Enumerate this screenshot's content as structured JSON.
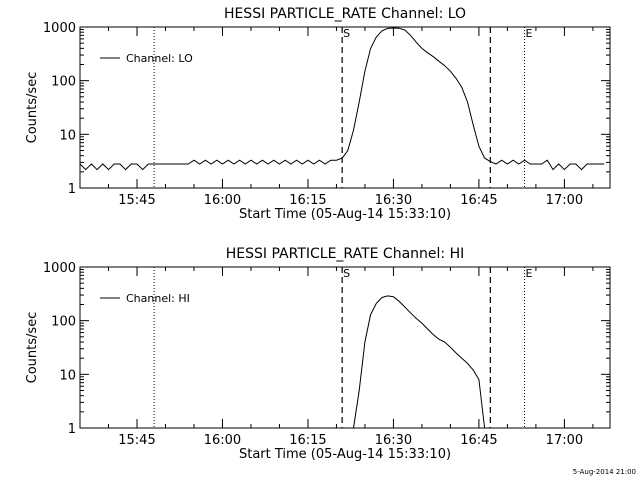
{
  "footer": {
    "timestamp": "5-Aug-2014 21:00"
  },
  "chart_data": [
    {
      "type": "line",
      "title": "HESSI PARTICLE_RATE Channel: LO",
      "xlabel": "Start Time (05-Aug-14 15:33:10)",
      "ylabel": "Counts/sec",
      "yscale": "log",
      "xlim": [
        "15:35",
        "17:08"
      ],
      "ylim": [
        1,
        1000
      ],
      "x_ticks": [
        "15:45",
        "16:00",
        "16:15",
        "16:30",
        "16:45",
        "17:00"
      ],
      "y_ticks": [
        "1",
        "10",
        "100",
        "1000"
      ],
      "legend": {
        "position": "top-left",
        "entries": [
          "Channel: LO"
        ]
      },
      "markers": [
        {
          "label": "S",
          "time": "16:21",
          "style": "dashed"
        },
        {
          "label": "",
          "time": "16:47",
          "style": "dashed"
        },
        {
          "label": "",
          "time": "15:48",
          "style": "dotted"
        },
        {
          "label": "E",
          "time": "16:53",
          "style": "dotted"
        },
        {
          "label": "",
          "time": "17:08",
          "style": "dotted"
        }
      ],
      "series": [
        {
          "name": "Channel: LO",
          "color": "#000000",
          "points": [
            [
              "15:35",
              2.8
            ],
            [
              "15:36",
              2.2
            ],
            [
              "15:37",
              2.8
            ],
            [
              "15:38",
              2.2
            ],
            [
              "15:39",
              2.8
            ],
            [
              "15:40",
              2.2
            ],
            [
              "15:41",
              2.8
            ],
            [
              "15:42",
              2.8
            ],
            [
              "15:43",
              2.2
            ],
            [
              "15:44",
              2.8
            ],
            [
              "15:45",
              2.8
            ],
            [
              "15:46",
              2.2
            ],
            [
              "15:47",
              2.8
            ],
            [
              "15:48",
              2.8
            ],
            [
              "15:49",
              2.8
            ],
            [
              "15:50",
              2.8
            ],
            [
              "15:51",
              2.8
            ],
            [
              "15:52",
              2.8
            ],
            [
              "15:53",
              2.8
            ],
            [
              "15:54",
              2.8
            ],
            [
              "15:55",
              3.3
            ],
            [
              "15:56",
              2.8
            ],
            [
              "15:57",
              3.3
            ],
            [
              "15:58",
              2.8
            ],
            [
              "15:59",
              3.3
            ],
            [
              "16:00",
              2.8
            ],
            [
              "16:01",
              3.3
            ],
            [
              "16:02",
              2.8
            ],
            [
              "16:03",
              3.3
            ],
            [
              "16:04",
              2.8
            ],
            [
              "16:05",
              3.3
            ],
            [
              "16:06",
              2.8
            ],
            [
              "16:07",
              3.3
            ],
            [
              "16:08",
              2.8
            ],
            [
              "16:09",
              3.3
            ],
            [
              "16:10",
              2.8
            ],
            [
              "16:11",
              3.3
            ],
            [
              "16:12",
              2.8
            ],
            [
              "16:13",
              3.3
            ],
            [
              "16:14",
              2.8
            ],
            [
              "16:15",
              3.3
            ],
            [
              "16:16",
              2.8
            ],
            [
              "16:17",
              3.3
            ],
            [
              "16:18",
              2.8
            ],
            [
              "16:19",
              3.3
            ],
            [
              "16:20",
              3.3
            ],
            [
              "16:21",
              3.6
            ],
            [
              "16:22",
              5
            ],
            [
              "16:23",
              12
            ],
            [
              "16:24",
              40
            ],
            [
              "16:25",
              150
            ],
            [
              "16:26",
              400
            ],
            [
              "16:27",
              650
            ],
            [
              "16:28",
              850
            ],
            [
              "16:29",
              940
            ],
            [
              "16:30",
              960
            ],
            [
              "16:31",
              950
            ],
            [
              "16:32",
              880
            ],
            [
              "16:33",
              700
            ],
            [
              "16:34",
              520
            ],
            [
              "16:35",
              400
            ],
            [
              "16:36",
              330
            ],
            [
              "16:37",
              280
            ],
            [
              "16:38",
              230
            ],
            [
              "16:39",
              190
            ],
            [
              "16:40",
              150
            ],
            [
              "16:41",
              110
            ],
            [
              "16:42",
              75
            ],
            [
              "16:43",
              40
            ],
            [
              "16:44",
              15
            ],
            [
              "16:45",
              6
            ],
            [
              "16:46",
              3.6
            ],
            [
              "16:47",
              3.1
            ],
            [
              "16:48",
              2.8
            ],
            [
              "16:49",
              3.3
            ],
            [
              "16:50",
              2.8
            ],
            [
              "16:51",
              3.3
            ],
            [
              "16:52",
              2.8
            ],
            [
              "16:53",
              3.3
            ],
            [
              "16:54",
              2.8
            ],
            [
              "16:55",
              2.8
            ],
            [
              "16:56",
              2.8
            ],
            [
              "16:57",
              3.3
            ],
            [
              "16:58",
              2.2
            ],
            [
              "16:59",
              2.8
            ],
            [
              "17:00",
              2.2
            ],
            [
              "17:01",
              2.8
            ],
            [
              "17:02",
              2.8
            ],
            [
              "17:03",
              2.2
            ],
            [
              "17:04",
              2.8
            ],
            [
              "17:05",
              2.8
            ],
            [
              "17:06",
              2.8
            ],
            [
              "17:07",
              2.8
            ]
          ]
        }
      ]
    },
    {
      "type": "line",
      "title": "HESSI PARTICLE_RATE Channel: HI",
      "xlabel": "Start Time (05-Aug-14 15:33:10)",
      "ylabel": "Counts/sec",
      "yscale": "log",
      "xlim": [
        "15:35",
        "17:08"
      ],
      "ylim": [
        1,
        1000
      ],
      "x_ticks": [
        "15:45",
        "16:00",
        "16:15",
        "16:30",
        "16:45",
        "17:00"
      ],
      "y_ticks": [
        "1",
        "10",
        "100",
        "1000"
      ],
      "legend": {
        "position": "top-left",
        "entries": [
          "Channel: HI"
        ]
      },
      "markers": [
        {
          "label": "S",
          "time": "16:21",
          "style": "dashed"
        },
        {
          "label": "",
          "time": "16:47",
          "style": "dashed"
        },
        {
          "label": "",
          "time": "15:48",
          "style": "dotted"
        },
        {
          "label": "E",
          "time": "16:53",
          "style": "dotted"
        },
        {
          "label": "",
          "time": "17:08",
          "style": "dotted"
        }
      ],
      "series": [
        {
          "name": "Channel: HI",
          "color": "#000000",
          "points": [
            [
              "16:23",
              1
            ],
            [
              "16:24",
              5
            ],
            [
              "16:25",
              40
            ],
            [
              "16:26",
              130
            ],
            [
              "16:27",
              210
            ],
            [
              "16:28",
              270
            ],
            [
              "16:29",
              290
            ],
            [
              "16:30",
              280
            ],
            [
              "16:31",
              230
            ],
            [
              "16:32",
              180
            ],
            [
              "16:33",
              140
            ],
            [
              "16:34",
              110
            ],
            [
              "16:35",
              90
            ],
            [
              "16:36",
              70
            ],
            [
              "16:37",
              55
            ],
            [
              "16:38",
              45
            ],
            [
              "16:39",
              40
            ],
            [
              "16:40",
              32
            ],
            [
              "16:41",
              25
            ],
            [
              "16:42",
              20
            ],
            [
              "16:43",
              16
            ],
            [
              "16:44",
              12
            ],
            [
              "16:45",
              8
            ],
            [
              "16:46",
              1
            ]
          ]
        }
      ]
    }
  ]
}
